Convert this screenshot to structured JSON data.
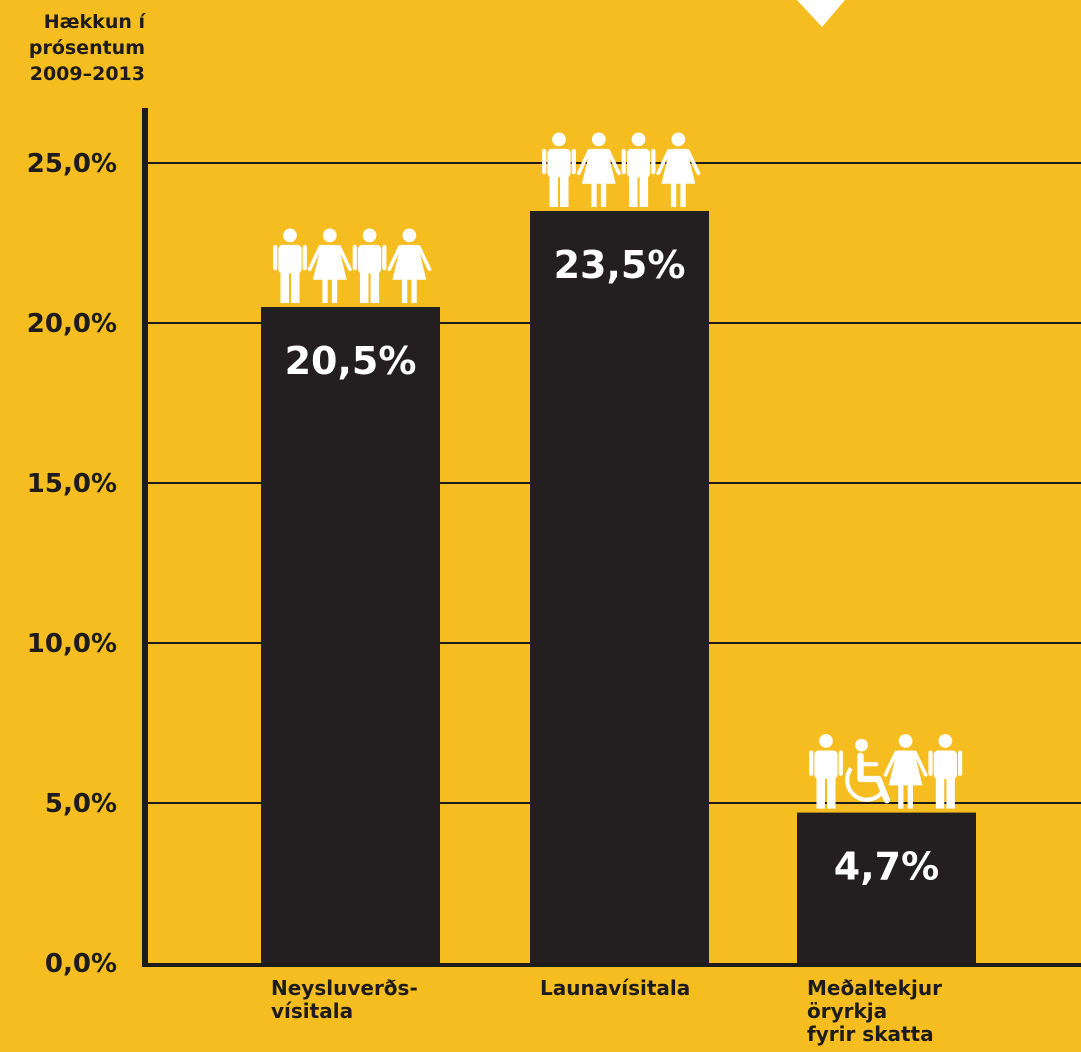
{
  "chart_data": {
    "type": "bar",
    "ylabel": [
      "Hækkun í",
      "prósentum",
      "2009–2013"
    ],
    "categories": [
      [
        "Neysluverðs-",
        "vísitala"
      ],
      [
        "Launavísitala"
      ],
      [
        "Meðaltekjur",
        "öryrkja",
        "fyrir skatta"
      ]
    ],
    "values": [
      20.5,
      23.5,
      4.7
    ],
    "data_labels": [
      "20,5%",
      "23,5%",
      "4,7%"
    ],
    "yticks": [
      {
        "value": 0,
        "label": "0,0%"
      },
      {
        "value": 5,
        "label": "5,0%"
      },
      {
        "value": 10,
        "label": "10,0%"
      },
      {
        "value": 15,
        "label": "15,0%"
      },
      {
        "value": 20,
        "label": "20,0%"
      },
      {
        "value": 25,
        "label": "25,0%"
      }
    ],
    "ylim": [
      0,
      26.5
    ],
    "grid": true,
    "icons": [
      [
        "man-icon",
        "woman-icon",
        "man-icon",
        "woman-icon"
      ],
      [
        "man-icon",
        "woman-icon",
        "man-icon",
        "woman-icon"
      ],
      [
        "man-icon",
        "wheelchair-icon",
        "woman-icon",
        "man-icon"
      ]
    ],
    "colors": {
      "background": "#f5bd1f",
      "bar": "#231f20",
      "axis": "#1d1b1c",
      "label": "#ffffff"
    }
  }
}
